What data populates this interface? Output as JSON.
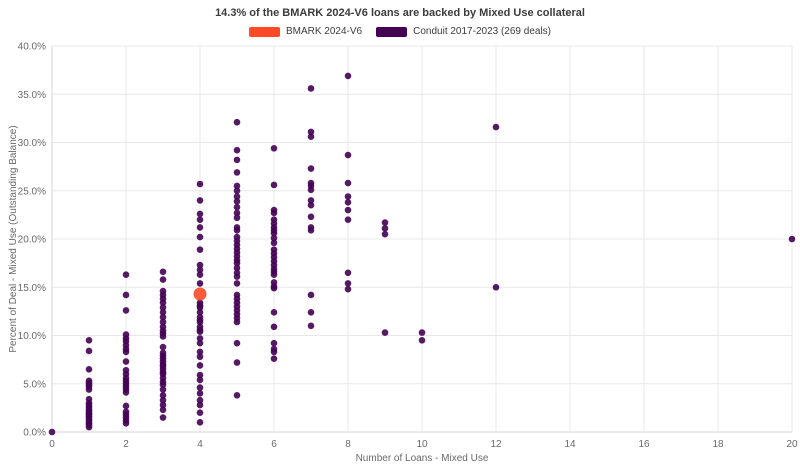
{
  "title": "14.3% of the BMARK 2024-V6 loans are backed by Mixed Use collateral",
  "legend": [
    {
      "label": "BMARK 2024-V6",
      "color": "#fb4a27"
    },
    {
      "label": "Conduit 2017-2023 (269 deals)",
      "color": "#440154"
    }
  ],
  "colors": {
    "bmark_orange": "#fb4a27",
    "conduit_purple": "#440154",
    "grid": "#e8e8e8",
    "axis_line": "#d6d6d6",
    "tick_text": "#696969",
    "axis_title_text": "#696969"
  },
  "chart_data": {
    "type": "scatter",
    "title": "14.3% of the BMARK 2024-V6 loans are backed by Mixed Use collateral",
    "xlabel": "Number of Loans - Mixed Use",
    "ylabel": "Percent of Deal - Mixed Use (Outstanding Balance)",
    "xlim": [
      0,
      20
    ],
    "ylim": [
      0,
      40
    ],
    "x_ticks": [
      0,
      2,
      4,
      6,
      8,
      10,
      12,
      14,
      16,
      18,
      20
    ],
    "y_ticks": [
      0,
      5,
      10,
      15,
      20,
      25,
      30,
      35,
      40
    ],
    "y_tick_labels": [
      "0.0%",
      "5.0%",
      "10.0%",
      "15.0%",
      "20.0%",
      "25.0%",
      "30.0%",
      "35.0%",
      "40.0%"
    ],
    "grid": true,
    "legend_position": "top-center",
    "series": [
      {
        "name": "Conduit 2017-2023 (269 deals)",
        "color": "#440154",
        "marker_radius": 3.3,
        "points": [
          [
            0,
            0.0
          ],
          [
            1,
            9.5
          ],
          [
            1,
            8.4
          ],
          [
            1,
            6.5
          ],
          [
            1,
            5.3
          ],
          [
            1,
            5.1
          ],
          [
            1,
            4.9
          ],
          [
            1,
            4.7
          ],
          [
            1,
            4.4
          ],
          [
            1,
            3.4
          ],
          [
            1,
            3.0
          ],
          [
            1,
            2.8
          ],
          [
            1,
            2.6
          ],
          [
            1,
            2.4
          ],
          [
            1,
            2.2
          ],
          [
            1,
            2.1
          ],
          [
            1,
            1.9
          ],
          [
            1,
            1.8
          ],
          [
            1,
            1.6
          ],
          [
            1,
            1.5
          ],
          [
            1,
            1.3
          ],
          [
            1,
            1.2
          ],
          [
            1,
            1.0
          ],
          [
            1,
            0.9
          ],
          [
            1,
            0.7
          ],
          [
            1,
            0.5
          ],
          [
            2,
            16.3
          ],
          [
            2,
            14.2
          ],
          [
            2,
            12.6
          ],
          [
            2,
            10.1
          ],
          [
            2,
            9.7
          ],
          [
            2,
            9.4
          ],
          [
            2,
            9.0
          ],
          [
            2,
            8.6
          ],
          [
            2,
            8.3
          ],
          [
            2,
            7.3
          ],
          [
            2,
            6.4
          ],
          [
            2,
            6.0
          ],
          [
            2,
            5.6
          ],
          [
            2,
            5.3
          ],
          [
            2,
            5.0
          ],
          [
            2,
            4.7
          ],
          [
            2,
            4.4
          ],
          [
            2,
            4.1
          ],
          [
            2,
            2.7
          ],
          [
            2,
            2.1
          ],
          [
            2,
            1.8
          ],
          [
            2,
            1.5
          ],
          [
            2,
            1.2
          ],
          [
            2,
            0.9
          ],
          [
            3,
            16.6
          ],
          [
            3,
            15.8
          ],
          [
            3,
            14.6
          ],
          [
            3,
            14.2
          ],
          [
            3,
            13.8
          ],
          [
            3,
            13.4
          ],
          [
            3,
            12.9
          ],
          [
            3,
            12.4
          ],
          [
            3,
            11.9
          ],
          [
            3,
            11.4
          ],
          [
            3,
            10.9
          ],
          [
            3,
            10.5
          ],
          [
            3,
            10.2
          ],
          [
            3,
            9.9
          ],
          [
            3,
            8.8
          ],
          [
            3,
            8.2
          ],
          [
            3,
            7.9
          ],
          [
            3,
            7.6
          ],
          [
            3,
            7.3
          ],
          [
            3,
            7.0
          ],
          [
            3,
            6.8
          ],
          [
            3,
            6.5
          ],
          [
            3,
            6.2
          ],
          [
            3,
            6.0
          ],
          [
            3,
            5.6
          ],
          [
            3,
            5.2
          ],
          [
            3,
            4.9
          ],
          [
            3,
            4.4
          ],
          [
            3,
            3.8
          ],
          [
            3,
            3.3
          ],
          [
            3,
            2.8
          ],
          [
            3,
            2.3
          ],
          [
            3,
            1.5
          ],
          [
            4,
            25.7
          ],
          [
            4,
            24.0
          ],
          [
            4,
            22.6
          ],
          [
            4,
            22.0
          ],
          [
            4,
            21.2
          ],
          [
            4,
            20.2
          ],
          [
            4,
            18.9
          ],
          [
            4,
            17.3
          ],
          [
            4,
            16.8
          ],
          [
            4,
            16.3
          ],
          [
            4,
            15.4
          ],
          [
            4,
            13.4
          ],
          [
            4,
            13.1
          ],
          [
            4,
            12.9
          ],
          [
            4,
            12.4
          ],
          [
            4,
            11.9
          ],
          [
            4,
            11.6
          ],
          [
            4,
            11.4
          ],
          [
            4,
            10.9
          ],
          [
            4,
            10.6
          ],
          [
            4,
            10.4
          ],
          [
            4,
            9.7
          ],
          [
            4,
            9.2
          ],
          [
            4,
            8.3
          ],
          [
            4,
            7.8
          ],
          [
            4,
            6.9
          ],
          [
            4,
            5.9
          ],
          [
            4,
            5.4
          ],
          [
            4,
            4.6
          ],
          [
            4,
            4.0
          ],
          [
            4,
            3.3
          ],
          [
            4,
            2.8
          ],
          [
            4,
            2.0
          ],
          [
            4,
            1.0
          ],
          [
            5,
            32.1
          ],
          [
            5,
            29.2
          ],
          [
            5,
            28.2
          ],
          [
            5,
            26.9
          ],
          [
            5,
            25.5
          ],
          [
            5,
            25.0
          ],
          [
            5,
            24.4
          ],
          [
            5,
            23.9
          ],
          [
            5,
            23.3
          ],
          [
            5,
            22.7
          ],
          [
            5,
            22.2
          ],
          [
            5,
            21.2
          ],
          [
            5,
            20.9
          ],
          [
            5,
            20.2
          ],
          [
            5,
            19.8
          ],
          [
            5,
            19.4
          ],
          [
            5,
            19.0
          ],
          [
            5,
            18.6
          ],
          [
            5,
            18.2
          ],
          [
            5,
            17.8
          ],
          [
            5,
            17.5
          ],
          [
            5,
            17.0
          ],
          [
            5,
            16.5
          ],
          [
            5,
            16.1
          ],
          [
            5,
            15.4
          ],
          [
            5,
            14.2
          ],
          [
            5,
            13.8
          ],
          [
            5,
            13.4
          ],
          [
            5,
            13.0
          ],
          [
            5,
            12.6
          ],
          [
            5,
            12.2
          ],
          [
            5,
            11.8
          ],
          [
            5,
            11.4
          ],
          [
            5,
            9.2
          ],
          [
            5,
            7.2
          ],
          [
            5,
            3.8
          ],
          [
            6,
            29.4
          ],
          [
            6,
            25.6
          ],
          [
            6,
            23.0
          ],
          [
            6,
            22.7
          ],
          [
            6,
            22.0
          ],
          [
            6,
            21.6
          ],
          [
            6,
            21.2
          ],
          [
            6,
            20.9
          ],
          [
            6,
            20.6
          ],
          [
            6,
            20.1
          ],
          [
            6,
            19.6
          ],
          [
            6,
            18.9
          ],
          [
            6,
            18.5
          ],
          [
            6,
            18.1
          ],
          [
            6,
            17.7
          ],
          [
            6,
            17.3
          ],
          [
            6,
            16.9
          ],
          [
            6,
            16.6
          ],
          [
            6,
            16.3
          ],
          [
            6,
            15.5
          ],
          [
            6,
            15.1
          ],
          [
            6,
            14.9
          ],
          [
            6,
            12.4
          ],
          [
            6,
            10.9
          ],
          [
            6,
            9.2
          ],
          [
            6,
            8.6
          ],
          [
            6,
            8.3
          ],
          [
            6,
            7.6
          ],
          [
            7,
            35.6
          ],
          [
            7,
            31.1
          ],
          [
            7,
            30.6
          ],
          [
            7,
            27.3
          ],
          [
            7,
            25.8
          ],
          [
            7,
            25.5
          ],
          [
            7,
            25.1
          ],
          [
            7,
            24.0
          ],
          [
            7,
            23.5
          ],
          [
            7,
            22.3
          ],
          [
            7,
            21.2
          ],
          [
            7,
            20.9
          ],
          [
            7,
            14.2
          ],
          [
            7,
            12.4
          ],
          [
            7,
            11.0
          ],
          [
            8,
            36.9
          ],
          [
            8,
            28.7
          ],
          [
            8,
            25.8
          ],
          [
            8,
            24.4
          ],
          [
            8,
            23.8
          ],
          [
            8,
            23.0
          ],
          [
            8,
            22.0
          ],
          [
            8,
            16.5
          ],
          [
            8,
            15.4
          ],
          [
            8,
            14.8
          ],
          [
            9,
            21.7
          ],
          [
            9,
            21.1
          ],
          [
            9,
            20.5
          ],
          [
            9,
            10.3
          ],
          [
            10,
            10.3
          ],
          [
            10,
            9.5
          ],
          [
            12,
            31.6
          ],
          [
            12,
            15.0
          ],
          [
            20,
            20.0
          ]
        ]
      },
      {
        "name": "BMARK 2024-V6",
        "color": "#fb4a27",
        "marker_radius": 6.5,
        "points": [
          [
            4,
            14.3
          ]
        ]
      }
    ]
  }
}
